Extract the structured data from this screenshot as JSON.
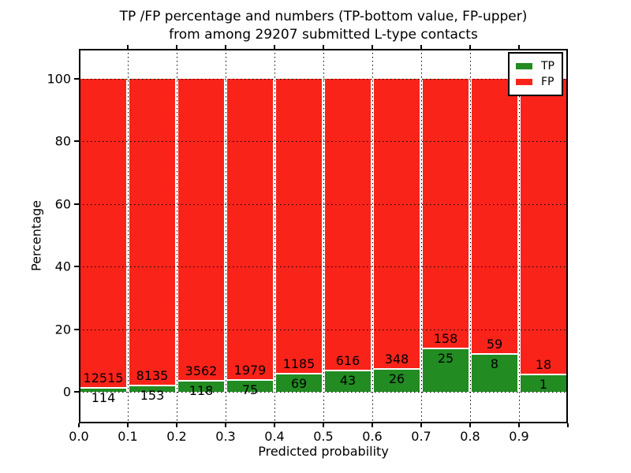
{
  "figure": {
    "title_line1": "TP /FP percentage and numbers (TP-bottom value, FP-upper)",
    "title_line2": "from among 29207 submitted L-type contacts"
  },
  "axes": {
    "x_label": "Predicted probability",
    "y_label": "Percentage",
    "x_tick_labels": [
      "0.0",
      "0.1",
      "0.2",
      "0.3",
      "0.4",
      "0.5",
      "0.6",
      "0.7",
      "0.8",
      "0.9"
    ],
    "y_tick_labels": [
      "0",
      "20",
      "40",
      "60",
      "80",
      "100"
    ],
    "y_tick_values": [
      0,
      20,
      40,
      60,
      80,
      100
    ]
  },
  "legend": {
    "items": [
      {
        "label": "TP",
        "color_key": "tp"
      },
      {
        "label": "FP",
        "color_key": "fp"
      }
    ]
  },
  "colors": {
    "tp": "#228B22",
    "fp": "#FA231A",
    "bar_edge": "#FFFFFF",
    "grid": "#000000",
    "spine": "#000000",
    "text": "#000000",
    "background": "#FFFFFF"
  },
  "chart_data": {
    "type": "bar",
    "stacked": true,
    "normalized": "each bin scaled to 100%",
    "title": "TP /FP percentage and numbers (TP-bottom value, FP-upper) from among 29207 submitted L-type contacts",
    "xlabel": "Predicted probability",
    "ylabel": "Percentage",
    "total_submitted": 29207,
    "x_bin_edges": [
      0.0,
      0.1,
      0.2,
      0.3,
      0.4,
      0.5,
      0.6,
      0.7,
      0.8,
      0.9,
      1.0
    ],
    "categories": [
      "0.0-0.1",
      "0.1-0.2",
      "0.2-0.3",
      "0.3-0.4",
      "0.4-0.5",
      "0.5-0.6",
      "0.6-0.7",
      "0.7-0.8",
      "0.8-0.9",
      "0.9-1.0"
    ],
    "series": [
      {
        "name": "TP",
        "counts": [
          114,
          153,
          118,
          75,
          69,
          43,
          26,
          25,
          8,
          1
        ],
        "percent": [
          0.9,
          1.85,
          3.21,
          3.65,
          5.5,
          6.53,
          6.95,
          13.66,
          11.94,
          5.26
        ]
      },
      {
        "name": "FP",
        "counts": [
          12515,
          8135,
          3562,
          1979,
          1185,
          616,
          348,
          158,
          59,
          18
        ],
        "percent": [
          99.1,
          98.15,
          96.79,
          96.35,
          94.5,
          93.47,
          93.05,
          86.34,
          88.06,
          94.74
        ]
      }
    ],
    "xlim": [
      0.0,
      1.0
    ],
    "ylim": [
      -10,
      109.5
    ],
    "grid": {
      "horizontal": true,
      "vertical": true,
      "line_style": "dotted"
    },
    "legend_position": "upper right"
  }
}
